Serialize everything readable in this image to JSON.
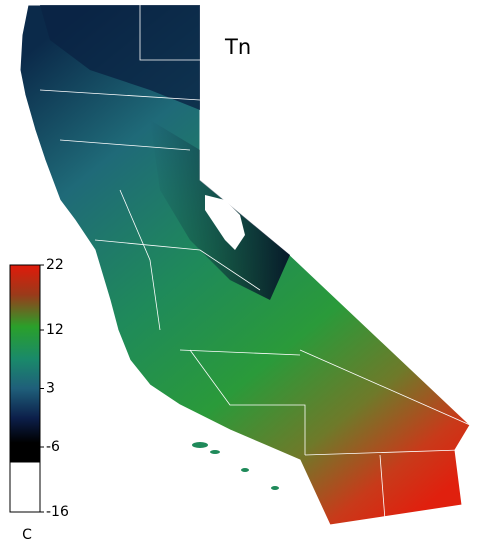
{
  "title": "Tn",
  "colorbar": {
    "unit": "C",
    "lim": [
      -16,
      22
    ],
    "ticks": [
      22,
      12,
      3,
      -6,
      -16
    ]
  }
}
